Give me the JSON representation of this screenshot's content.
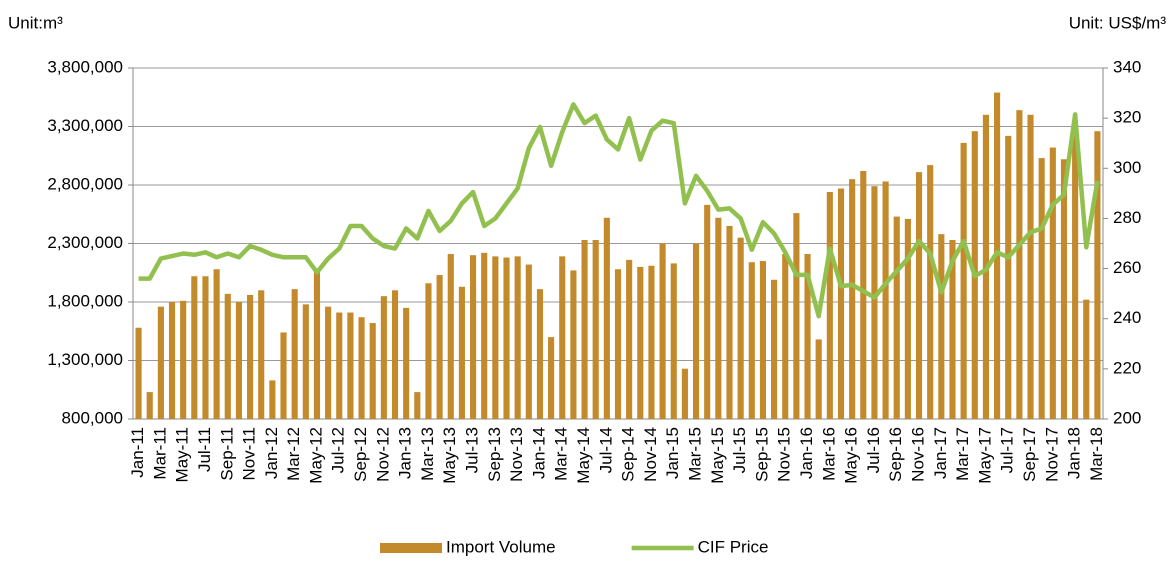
{
  "chart_data": {
    "type": "bar",
    "y_label": "Unit:m³",
    "y2_label": "Unit: US$/m³",
    "categories": [
      "Jan-11",
      null,
      "Mar-11",
      null,
      "May-11",
      null,
      "Jul-11",
      null,
      "Sep-11",
      null,
      "Nov-11",
      null,
      "Jan-12",
      null,
      "Mar-12",
      null,
      "May-12",
      null,
      "Jul-12",
      null,
      "Sep-12",
      null,
      "Nov-12",
      null,
      "Jan-13",
      null,
      "Mar-13",
      null,
      "May-13",
      null,
      "Jul-13",
      null,
      "Sep-13",
      null,
      "Nov-13",
      null,
      "Jan-14",
      null,
      "Mar-14",
      null,
      "May-14",
      null,
      "Jul-14",
      null,
      "Sep-14",
      null,
      "Nov-14",
      null,
      "Jan-15",
      null,
      "Mar-15",
      null,
      "May-15",
      null,
      "Jul-15",
      null,
      "Sep-15",
      null,
      "Nov-15",
      null,
      "Jan-16",
      null,
      "Mar-16",
      null,
      "May-16",
      null,
      "Jul-16",
      null,
      "Sep-16",
      null,
      "Nov-16",
      null,
      "Jan-17",
      null,
      "Mar-17",
      null,
      "May-17",
      null,
      "Jul-17",
      null,
      "Sep-17",
      null,
      "Nov-17",
      null,
      "Jan-18",
      null,
      "Mar-18"
    ],
    "series": [
      {
        "name": "Import Volume",
        "type": "bar",
        "color": "#c38a2c",
        "values": [
          1580000,
          1030000,
          1760000,
          1800000,
          1810000,
          2020000,
          2020000,
          2080000,
          1870000,
          1800000,
          1860000,
          1900000,
          1130000,
          1540000,
          1910000,
          1780000,
          2060000,
          1760000,
          1710000,
          1710000,
          1670000,
          1620000,
          1850000,
          1900000,
          1750000,
          1030000,
          1960000,
          2030000,
          2210000,
          1930000,
          2200000,
          2220000,
          2190000,
          2180000,
          2190000,
          2120000,
          1910000,
          1500000,
          2190000,
          2070000,
          2330000,
          2330000,
          2520000,
          2080000,
          2160000,
          2100000,
          2110000,
          2300000,
          2130000,
          1230000,
          2300000,
          2630000,
          2520000,
          2450000,
          2350000,
          2140000,
          2150000,
          1990000,
          2210000,
          2560000,
          2210000,
          1480000,
          2740000,
          2770000,
          2850000,
          2920000,
          2790000,
          2830000,
          2530000,
          2510000,
          2910000,
          2970000,
          2380000,
          2330000,
          3160000,
          3260000,
          3400000,
          3590000,
          3220000,
          3440000,
          3400000,
          3030000,
          3120000,
          3020000,
          3220000,
          1820000,
          3260000
        ]
      },
      {
        "name": "CIF Price",
        "type": "line",
        "axis": "y2",
        "color": "#92c04f",
        "values": [
          256,
          256,
          264,
          265,
          266,
          265.5,
          266.5,
          264.5,
          266,
          264.5,
          269,
          267.5,
          265.5,
          264.5,
          264.5,
          264.5,
          258.5,
          264,
          268,
          277,
          277,
          272,
          269,
          268,
          276,
          272,
          283,
          275,
          279,
          286,
          290.5,
          277,
          280,
          286,
          292,
          308,
          316.5,
          301,
          314.5,
          325.5,
          318,
          321,
          311.5,
          307.5,
          320,
          303.5,
          315,
          319,
          318,
          286,
          297,
          291,
          283.5,
          284,
          280,
          267.5,
          278.5,
          274,
          266.5,
          257.5,
          257.5,
          241,
          268,
          253,
          253.5,
          251,
          248.5,
          254,
          259,
          264,
          271,
          266,
          250.5,
          263,
          271,
          257,
          259.5,
          266.5,
          264.5,
          269.5,
          274.5,
          276,
          285.5,
          289.5,
          321.5,
          268.5,
          295
        ]
      }
    ],
    "ylim": [
      800000,
      3800000
    ],
    "yticks": [
      {
        "value": 800000,
        "label": "800,000"
      },
      {
        "value": 1300000,
        "label": "1,300,000"
      },
      {
        "value": 1800000,
        "label": "1,800,000"
      },
      {
        "value": 2300000,
        "label": "2,300,000"
      },
      {
        "value": 2800000,
        "label": "2,800,000"
      },
      {
        "value": 3300000,
        "label": "3,300,000"
      },
      {
        "value": 3800000,
        "label": "3,800,000"
      }
    ],
    "y2lim": [
      200,
      340
    ],
    "y2ticks": [
      200,
      220,
      240,
      260,
      280,
      300,
      320,
      340
    ],
    "grid": true,
    "legend": "bottom"
  }
}
